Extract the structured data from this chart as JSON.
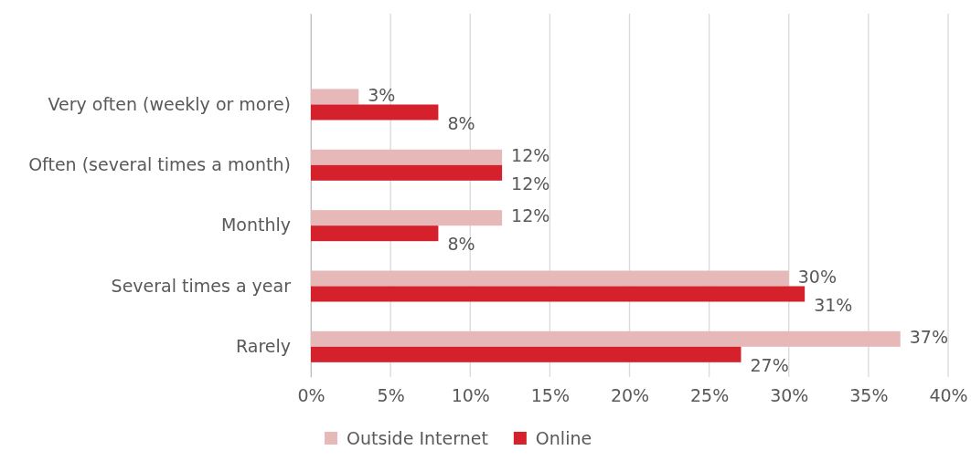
{
  "chart_data": {
    "type": "bar",
    "orientation": "horizontal",
    "categories": [
      null,
      "Very often (weekly or more)",
      "Often (several times a month)",
      "Monthly",
      "Several times a year",
      "Rarely"
    ],
    "series": [
      {
        "name": "Outside Internet",
        "color": "#e6b8b7",
        "values": [
          null,
          3,
          12,
          12,
          30,
          37
        ],
        "value_labels": [
          null,
          "3%",
          "12%",
          "12%",
          "30%",
          "37%"
        ]
      },
      {
        "name": "Online",
        "color": "#d4212b",
        "values": [
          null,
          8,
          12,
          8,
          31,
          27
        ],
        "value_labels": [
          null,
          "8%",
          "12%",
          "8%",
          "31%",
          "27%"
        ]
      }
    ],
    "xlim": [
      0,
      40
    ],
    "xticks": [
      {
        "value": 0,
        "label": "0%"
      },
      {
        "value": 5,
        "label": "5%"
      },
      {
        "value": 10,
        "label": "10%"
      },
      {
        "value": 15,
        "label": "15%"
      },
      {
        "value": 20,
        "label": "20%"
      },
      {
        "value": 25,
        "label": "25%"
      },
      {
        "value": 30,
        "label": "30%"
      },
      {
        "value": 35,
        "label": "35%"
      },
      {
        "value": 40,
        "label": "40%"
      }
    ],
    "grid": "x",
    "legend": "bottom"
  }
}
